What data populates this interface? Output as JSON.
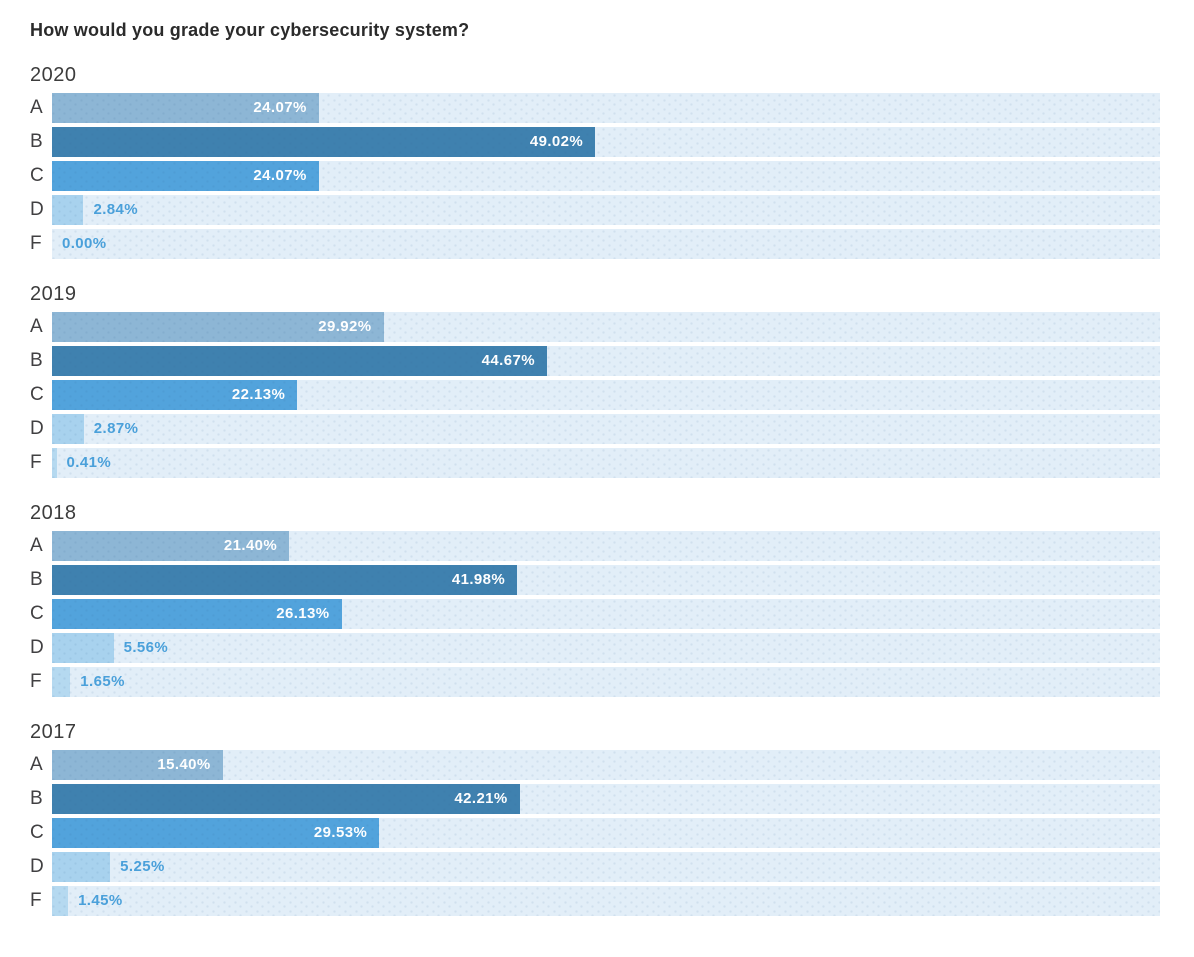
{
  "page": {
    "title": "How would you grade your cybersecurity system?"
  },
  "chart_data": {
    "type": "bar",
    "orientation": "horizontal",
    "title": "How would you grade your cybersecurity system?",
    "value_unit": "%",
    "axis_range": [
      0,
      100
    ],
    "grid": false,
    "legend": "none",
    "categories": [
      "A",
      "B",
      "C",
      "D",
      "F"
    ],
    "groups": [
      {
        "year": "2020",
        "values": [
          24.07,
          49.02,
          24.07,
          2.84,
          0.0
        ],
        "labels": [
          "24.07%",
          "49.02%",
          "24.07%",
          "2.84%",
          "0.00%"
        ]
      },
      {
        "year": "2019",
        "values": [
          29.92,
          44.67,
          22.13,
          2.87,
          0.41
        ],
        "labels": [
          "29.92%",
          "44.67%",
          "22.13%",
          "2.87%",
          "0.41%"
        ]
      },
      {
        "year": "2018",
        "values": [
          21.4,
          41.98,
          26.13,
          5.56,
          1.65
        ],
        "labels": [
          "21.40%",
          "41.98%",
          "26.13%",
          "5.56%",
          "1.65%"
        ]
      },
      {
        "year": "2017",
        "values": [
          15.4,
          42.21,
          29.53,
          5.25,
          1.45
        ],
        "labels": [
          "15.40%",
          "42.21%",
          "29.53%",
          "5.25%",
          "1.45%"
        ]
      }
    ],
    "colors": {
      "A": "#8db6d5",
      "B": "#3f81af",
      "C": "#52a3dc",
      "D": "#a8d2ee",
      "F": "#b5d9f0"
    },
    "track_color": "#e2eef8",
    "inside_label_color": "#ffffff",
    "outside_label_color": "#4aa0da",
    "inside_label_threshold_percent": 8
  }
}
